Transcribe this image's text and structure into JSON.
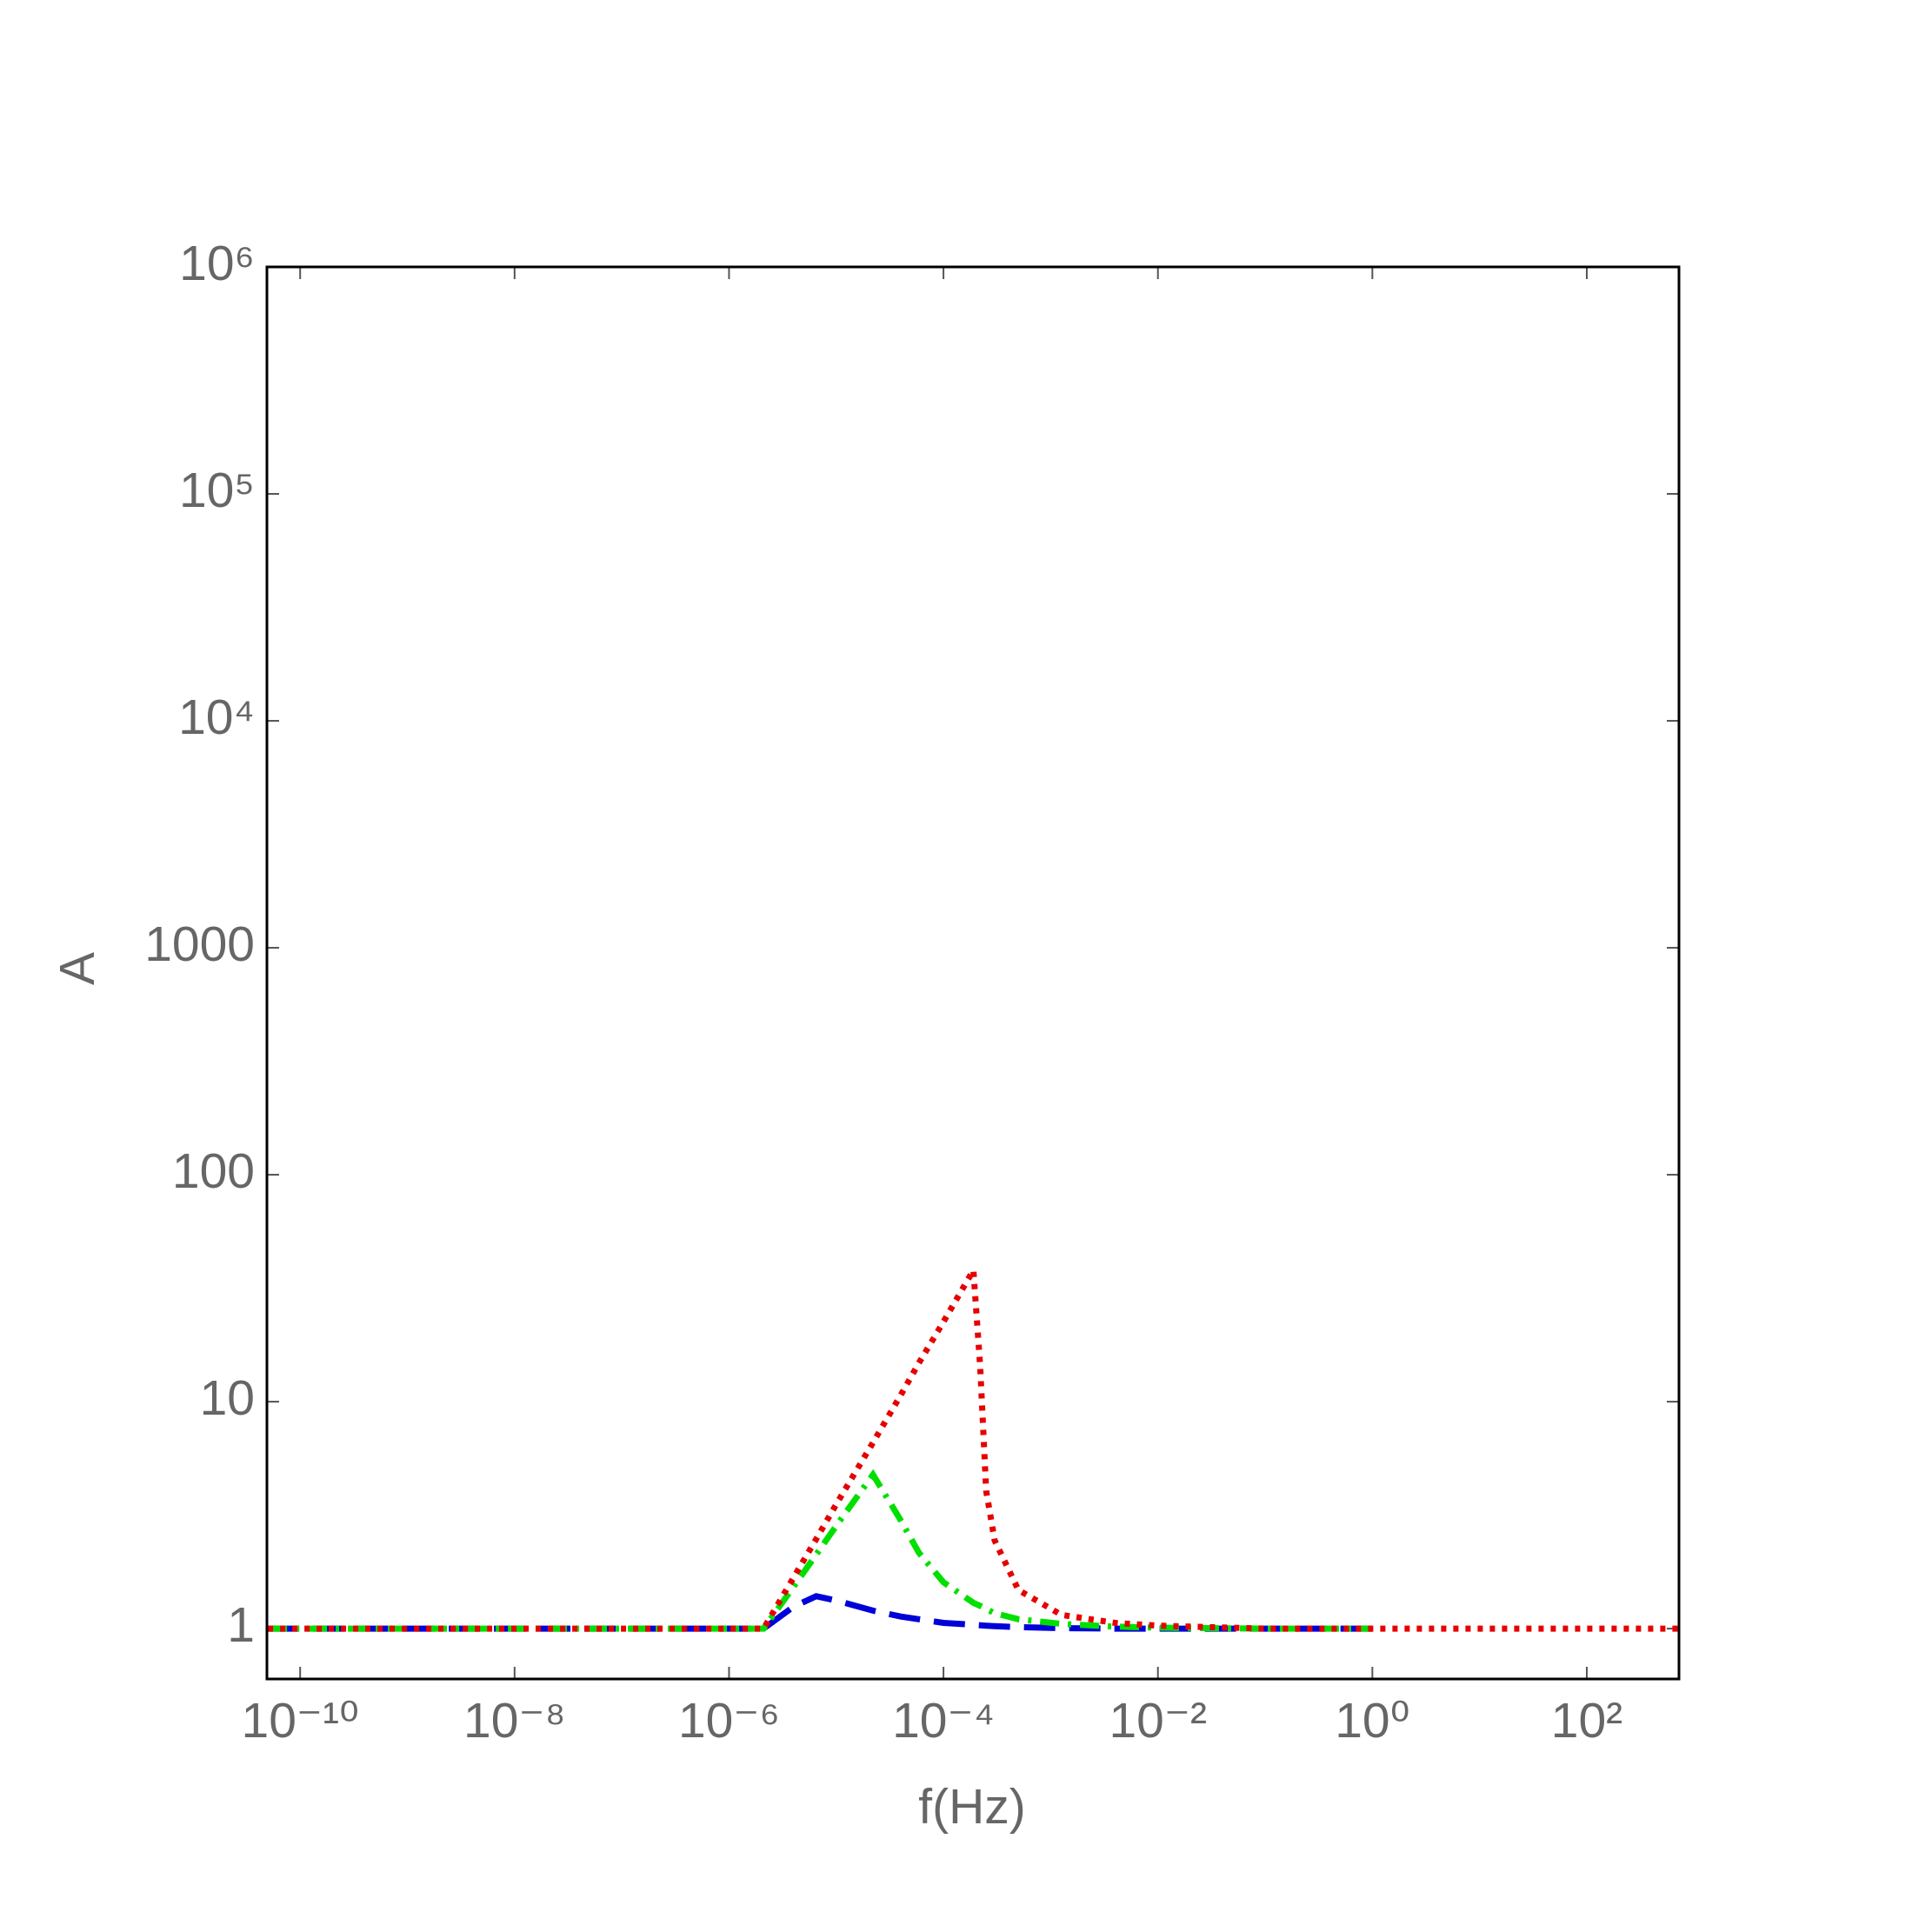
{
  "chart_data": {
    "type": "line",
    "x_label": "f(Hz)",
    "y_label": "A",
    "x_scale": "log",
    "y_scale": "log",
    "x": [
      5e-11,
      2.1e-06,
      4e-06,
      6.5e-06,
      1e-05,
      2.2e-05,
      4e-05,
      5.9e-05,
      0.0001,
      0.00019,
      0.00022,
      0.00025,
      0.0003,
      0.0005,
      0.00126,
      0.004,
      0.01,
      0.1,
      1,
      724
    ],
    "series": [
      {
        "color": "#0000d8",
        "dash": "dashed",
        "values": [
          1,
          1,
          1.25,
          1.39,
          1.33,
          1.2,
          1.13,
          1.1,
          1.06,
          1.04,
          1.035,
          1.03,
          1.025,
          1.015,
          1.005,
          1,
          1,
          1,
          1,
          null
        ]
      },
      {
        "color": "#00e000",
        "dash": "dash-dot",
        "values": [
          1,
          1,
          1.53,
          2.12,
          2.84,
          4.77,
          3.0,
          2.16,
          1.6,
          1.3,
          1.26,
          1.22,
          1.17,
          1.1,
          1.05,
          1.02,
          1.01,
          1,
          1,
          null
        ]
      },
      {
        "color": "#e60000",
        "dash": "dotted",
        "values": [
          1,
          1,
          1.68,
          2.48,
          3.53,
          6.6,
          10.7,
          14.8,
          22.5,
          38,
          14.3,
          4.05,
          2.45,
          1.48,
          1.15,
          1.06,
          1.03,
          1,
          1,
          1
        ]
      }
    ],
    "xlim": [
      4.9e-11,
      724
    ],
    "ylim": [
      0.6,
      1000000
    ],
    "xticks": [
      {
        "value": 1e-10,
        "label": "10⁻¹⁰"
      },
      {
        "value": 1e-08,
        "label": "10⁻⁸"
      },
      {
        "value": 1e-06,
        "label": "10⁻⁶"
      },
      {
        "value": 0.0001,
        "label": "10⁻⁴"
      },
      {
        "value": 0.01,
        "label": "10⁻²"
      },
      {
        "value": 1,
        "label": "10⁰"
      },
      {
        "value": 100,
        "label": "10²"
      }
    ],
    "yticks": [
      1,
      10,
      100,
      1000,
      {
        "value": 10000,
        "label": "10⁴"
      },
      {
        "value": 100000,
        "label": "10⁵"
      },
      {
        "value": 1000000,
        "label": "10⁶"
      }
    ],
    "grid": false
  }
}
